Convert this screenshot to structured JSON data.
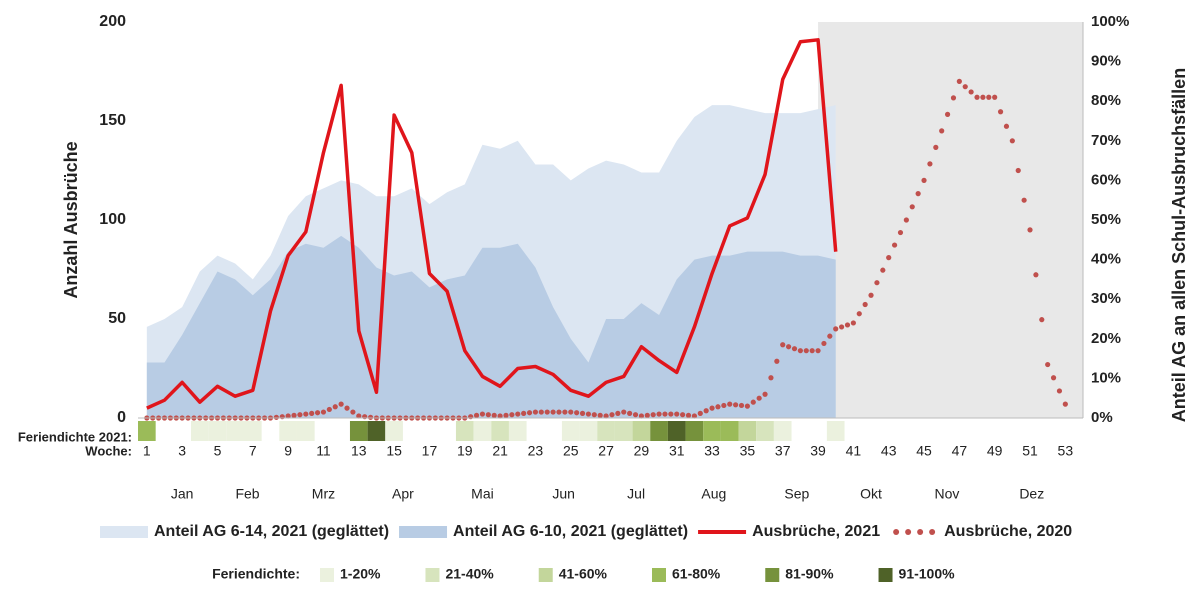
{
  "chart_data": {
    "type": "line",
    "y_label": "Anzahl Ausbrüche",
    "y2_label": "Anteil AG an allen Schul-Ausbruchsfällen",
    "x_label": "Woche:",
    "x": [
      1,
      2,
      3,
      4,
      5,
      6,
      7,
      8,
      9,
      10,
      11,
      12,
      13,
      14,
      15,
      16,
      17,
      18,
      19,
      20,
      21,
      22,
      23,
      24,
      25,
      26,
      27,
      28,
      29,
      30,
      31,
      32,
      33,
      34,
      35,
      36,
      37,
      38,
      39,
      40,
      41,
      42,
      43,
      44,
      45,
      46,
      47,
      48,
      49,
      50,
      51,
      52,
      53
    ],
    "xlim": [
      0.5,
      54
    ],
    "xticks": [
      1,
      3,
      5,
      7,
      9,
      11,
      13,
      15,
      17,
      19,
      21,
      23,
      25,
      27,
      29,
      31,
      33,
      35,
      37,
      39,
      41,
      43,
      45,
      47,
      49,
      51,
      53
    ],
    "months": [
      {
        "value": 3,
        "label": "Jan"
      },
      {
        "value": 6.7,
        "label": "Feb"
      },
      {
        "value": 11,
        "label": "Mrz"
      },
      {
        "value": 15.5,
        "label": "Apr"
      },
      {
        "value": 20,
        "label": "Mai"
      },
      {
        "value": 24.6,
        "label": "Jun"
      },
      {
        "value": 28.7,
        "label": "Jul"
      },
      {
        "value": 33.1,
        "label": "Aug"
      },
      {
        "value": 37.8,
        "label": "Sep"
      },
      {
        "value": 42,
        "label": "Okt"
      },
      {
        "value": 46.3,
        "label": "Nov"
      },
      {
        "value": 51.1,
        "label": "Dez"
      }
    ],
    "ylim": [
      0,
      200
    ],
    "yticks": [
      0,
      50,
      100,
      150,
      200
    ],
    "y2lim": [
      0,
      100
    ],
    "y2ticks": [
      {
        "value": 0,
        "label": "0%"
      },
      {
        "value": 10,
        "label": "10%"
      },
      {
        "value": 20,
        "label": "20%"
      },
      {
        "value": 30,
        "label": "30%"
      },
      {
        "value": 40,
        "label": "40%"
      },
      {
        "value": 50,
        "label": "50%"
      },
      {
        "value": 60,
        "label": "60%"
      },
      {
        "value": 70,
        "label": "70%"
      },
      {
        "value": 80,
        "label": "80%"
      },
      {
        "value": 90,
        "label": "90%"
      },
      {
        "value": 100,
        "label": "100%"
      }
    ],
    "shaded_xlim": [
      39,
      54
    ],
    "shade_color": "#e8e8e8",
    "series": [
      {
        "name": "Anteil AG 6-14, 2021 (geglättet)",
        "style": "area",
        "axis": "y2",
        "color": "#dce6f2",
        "values": [
          23,
          25,
          28,
          37,
          41,
          39,
          35,
          41,
          51,
          56,
          58,
          60,
          59,
          56,
          56,
          58,
          54,
          57,
          59,
          69,
          68,
          70,
          64,
          64,
          60,
          63,
          65,
          64,
          62,
          62,
          70,
          76,
          79,
          79,
          78,
          77,
          77,
          77,
          78,
          79,
          null,
          null,
          null,
          null,
          null,
          null,
          null,
          null,
          null,
          null,
          null,
          null,
          null
        ]
      },
      {
        "name": "Anteil AG 6-10, 2021 (geglättet)",
        "style": "area",
        "axis": "y2",
        "color": "#b8cce4",
        "values": [
          14,
          14,
          21,
          29,
          37,
          35,
          31,
          35,
          42,
          44,
          43,
          46,
          43,
          38,
          36,
          37,
          33,
          35,
          36,
          43,
          43,
          44,
          38,
          28,
          20,
          14,
          25,
          25,
          29,
          26,
          35,
          40,
          41,
          41,
          42,
          42,
          42,
          41,
          41,
          40,
          null,
          null,
          null,
          null,
          null,
          null,
          null,
          null,
          null,
          null,
          null,
          null,
          null
        ]
      },
      {
        "name": "Ausbrüche, 2021",
        "style": "line",
        "color": "#e0151b",
        "values": [
          5,
          9,
          18,
          8,
          16,
          11,
          14,
          54,
          82,
          94,
          134,
          168,
          44,
          13,
          153,
          134,
          73,
          64,
          34,
          21,
          16,
          25,
          26,
          22,
          14,
          11,
          18,
          21,
          36,
          29,
          23,
          46,
          73,
          97,
          101,
          123,
          171,
          190,
          191,
          84,
          null,
          null,
          null,
          null,
          null,
          null,
          null,
          null,
          null,
          null,
          null,
          null,
          null
        ]
      },
      {
        "name": "Ausbrüche, 2020",
        "style": "dots",
        "color": "#c0504d",
        "values": [
          0,
          0,
          0,
          0,
          0,
          0,
          0,
          0,
          1,
          2,
          3,
          7,
          1,
          0,
          0,
          0,
          0,
          0,
          0,
          2,
          1,
          2,
          3,
          3,
          3,
          2,
          1,
          3,
          1,
          2,
          2,
          1,
          5,
          7,
          6,
          12,
          37,
          34,
          34,
          45,
          48,
          62,
          81,
          100,
          120,
          145,
          170,
          162,
          162,
          140,
          95,
          27,
          7
        ]
      }
    ],
    "holidays": {
      "label": "Feriendichte 2021:",
      "legend_title": "Feriendichte:",
      "levels": [
        4,
        0,
        0,
        1,
        1,
        1,
        1,
        0,
        1,
        1,
        0,
        0,
        5,
        6,
        1,
        0,
        0,
        0,
        2,
        1,
        2,
        1,
        0,
        0,
        1,
        1,
        2,
        2,
        3,
        5,
        6,
        5,
        4,
        4,
        3,
        2,
        1,
        0,
        0,
        1,
        0,
        0,
        0,
        0,
        0,
        0,
        0,
        0,
        0,
        0,
        0,
        0,
        0
      ],
      "level_names": [
        "1-20%",
        "21-40%",
        "41-60%",
        "61-80%",
        "81-90%",
        "91-100%"
      ],
      "colors": [
        "#ebf1de",
        "#d7e4bd",
        "#c3d69b",
        "#9bbb59",
        "#76923c",
        "#4f6228"
      ]
    }
  }
}
